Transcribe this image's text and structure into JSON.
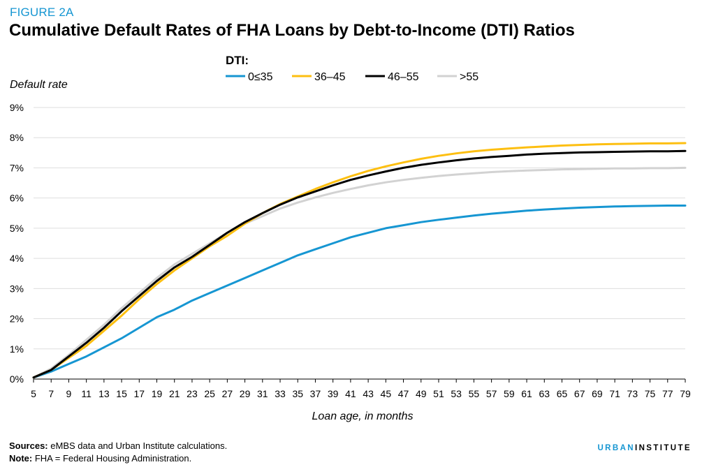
{
  "figure_label": "FIGURE 2A",
  "footer": {
    "sources_label": "Sources:",
    "sources_text": "eMBS data and Urban Institute calculations.",
    "note_label": "Note:",
    "note_text": "FHA = Federal Housing Administration."
  },
  "brand": {
    "part1": "URBAN",
    "part2": "INSTITUTE"
  },
  "colors": {
    "accent": "#1696d2",
    "s1": "#1696d2",
    "s2": "#fdbf11",
    "s3": "#000000",
    "s4": "#d2d2d2",
    "grid": "#dedede"
  },
  "chart_data": {
    "type": "line",
    "title": "Cumulative Default Rates of FHA Loans by Debt-to-Income (DTI) Ratios",
    "xlabel": "Loan age, in months",
    "ylabel": "Default rate",
    "legend_title": "DTI:",
    "legend_position": "top-center",
    "grid": true,
    "x_range": [
      5,
      79
    ],
    "x_ticks": [
      5,
      7,
      9,
      11,
      13,
      15,
      17,
      19,
      21,
      23,
      25,
      27,
      29,
      31,
      33,
      35,
      37,
      39,
      41,
      43,
      45,
      47,
      49,
      51,
      53,
      55,
      57,
      59,
      61,
      63,
      65,
      67,
      69,
      71,
      73,
      75,
      77,
      79
    ],
    "ylim": [
      0,
      9
    ],
    "y_ticks": [
      0,
      1,
      2,
      3,
      4,
      5,
      6,
      7,
      8,
      9
    ],
    "y_tick_labels": [
      "0%",
      "1%",
      "2%",
      "3%",
      "4%",
      "5%",
      "6%",
      "7%",
      "8%",
      "9%"
    ],
    "x_points": [
      5,
      7,
      9,
      11,
      13,
      15,
      17,
      19,
      21,
      23,
      25,
      27,
      29,
      31,
      33,
      35,
      37,
      39,
      41,
      43,
      45,
      47,
      49,
      51,
      53,
      55,
      57,
      59,
      61,
      63,
      65,
      67,
      69,
      71,
      73,
      75,
      77,
      79
    ],
    "series": [
      {
        "name": "0≤35",
        "color_key": "s1",
        "values": [
          0.05,
          0.25,
          0.5,
          0.75,
          1.05,
          1.35,
          1.7,
          2.05,
          2.3,
          2.6,
          2.85,
          3.1,
          3.35,
          3.6,
          3.85,
          4.1,
          4.3,
          4.5,
          4.7,
          4.85,
          5.0,
          5.1,
          5.2,
          5.28,
          5.35,
          5.42,
          5.48,
          5.53,
          5.58,
          5.62,
          5.65,
          5.68,
          5.7,
          5.72,
          5.73,
          5.74,
          5.75,
          5.75
        ]
      },
      {
        "name": "36–45",
        "color_key": "s2",
        "values": [
          0.05,
          0.3,
          0.7,
          1.1,
          1.6,
          2.1,
          2.65,
          3.15,
          3.6,
          4.0,
          4.4,
          4.75,
          5.15,
          5.5,
          5.8,
          6.05,
          6.3,
          6.52,
          6.72,
          6.9,
          7.05,
          7.18,
          7.3,
          7.4,
          7.48,
          7.55,
          7.6,
          7.64,
          7.68,
          7.71,
          7.74,
          7.76,
          7.78,
          7.79,
          7.8,
          7.81,
          7.81,
          7.82
        ]
      },
      {
        "name": "46–55",
        "color_key": "s3",
        "values": [
          0.05,
          0.3,
          0.75,
          1.2,
          1.7,
          2.25,
          2.75,
          3.25,
          3.7,
          4.05,
          4.45,
          4.85,
          5.2,
          5.5,
          5.78,
          6.02,
          6.22,
          6.42,
          6.6,
          6.75,
          6.88,
          7.0,
          7.1,
          7.18,
          7.25,
          7.31,
          7.36,
          7.4,
          7.44,
          7.47,
          7.49,
          7.51,
          7.52,
          7.53,
          7.54,
          7.55,
          7.55,
          7.56
        ]
      },
      {
        "name": ">55",
        "color_key": "s4",
        "values": [
          0.05,
          0.35,
          0.8,
          1.3,
          1.8,
          2.35,
          2.85,
          3.35,
          3.8,
          4.15,
          4.5,
          4.85,
          5.15,
          5.4,
          5.65,
          5.85,
          6.02,
          6.17,
          6.3,
          6.42,
          6.52,
          6.6,
          6.67,
          6.73,
          6.78,
          6.82,
          6.86,
          6.89,
          6.91,
          6.93,
          6.95,
          6.96,
          6.97,
          6.98,
          6.98,
          6.99,
          6.99,
          7.0
        ]
      }
    ]
  }
}
